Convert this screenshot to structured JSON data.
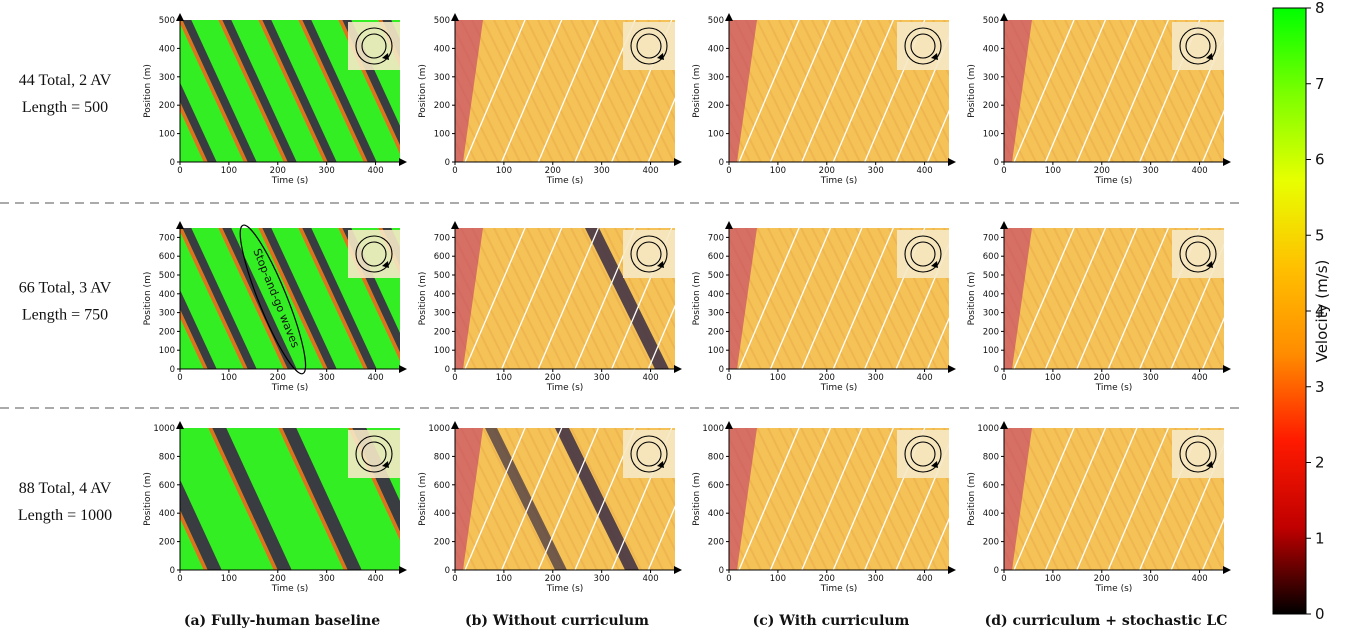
{
  "row_labels": [
    {
      "line1": "44 Total, 2 AV",
      "line2": "Length = 500"
    },
    {
      "line1": "66 Total, 3 AV",
      "line2": "Length = 750"
    },
    {
      "line1": "88 Total, 4 AV",
      "line2": "Length = 1000"
    }
  ],
  "captions": [
    "(a) Fully-human baseline",
    "(b) Without curriculum",
    "(c) With curriculum",
    "(d) curriculum + stochastic LC"
  ],
  "annotation": "Stop-and-go waves",
  "colorbar": {
    "label": "Velocity (m/s)",
    "min": 0,
    "max": 8,
    "ticks": [
      0,
      1,
      2,
      3,
      4,
      5,
      6,
      7,
      8
    ],
    "colors": [
      "#000000",
      "#c00000",
      "#ff1a00",
      "#ff8c00",
      "#ffc000",
      "#e8ff00",
      "#7cff00",
      "#00ff00"
    ]
  },
  "colors": {
    "free_flow": "#33ee22",
    "congested": "#3a2d44",
    "smoothed": "#f5c258",
    "trajectory": "#ffffff"
  },
  "chart_data": {
    "type": "heatmap",
    "x_axis": {
      "label": "Time (s)",
      "range": [
        0,
        450
      ],
      "ticks": [
        0,
        100,
        200,
        300,
        400
      ]
    },
    "y_axis": {
      "label": "Position (m)"
    },
    "rows": [
      {
        "ring_length": 500,
        "total_vehicles": 44,
        "av_count": 2,
        "y_range": [
          0,
          500
        ],
        "y_ticks": [
          0,
          100,
          200,
          300,
          400,
          500
        ]
      },
      {
        "ring_length": 750,
        "total_vehicles": 66,
        "av_count": 3,
        "y_range": [
          0,
          750
        ],
        "y_ticks": [
          0,
          100,
          200,
          300,
          400,
          500,
          600,
          700
        ]
      },
      {
        "ring_length": 1000,
        "total_vehicles": 88,
        "av_count": 4,
        "y_range": [
          0,
          1000
        ],
        "y_ticks": [
          0,
          200,
          400,
          600,
          800,
          1000
        ]
      }
    ],
    "columns": [
      {
        "method": "Fully-human baseline"
      },
      {
        "method": "Without curriculum"
      },
      {
        "method": "With curriculum"
      },
      {
        "method": "curriculum + stochastic LC"
      }
    ]
  }
}
